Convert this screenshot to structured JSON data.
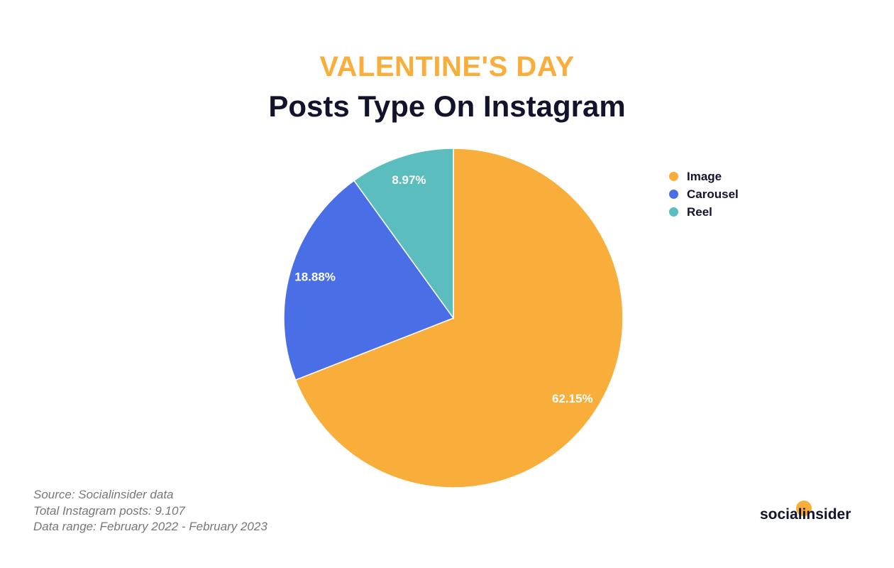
{
  "chart_data": {
    "type": "pie",
    "title": "VALENTINE'S DAY",
    "subtitle": "Posts Type On Instagram",
    "categories": [
      "Image",
      "Carousel",
      "Reel"
    ],
    "values": [
      62.15,
      18.88,
      8.97
    ],
    "labels": [
      "62.15%",
      "18.88%",
      "8.97%"
    ],
    "colors": [
      "#f9ae3c",
      "#4a6ee6",
      "#5bbdbe"
    ],
    "legend_position": "top-right",
    "start_angle_deg": 0,
    "direction": "clockwise"
  },
  "footer": {
    "source": "Source: Socialinsider data",
    "total": "Total Instagram posts: 9.107",
    "range": "Data range: February 2022 - February 2023"
  },
  "brand": {
    "name": "socialinsider",
    "accent": "#f9ae3c"
  }
}
